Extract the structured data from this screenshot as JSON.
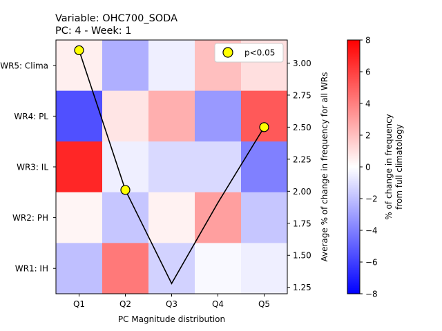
{
  "chart_data": {
    "type": "heatmap",
    "title_line1": "Variable: OHC700_SODA",
    "title_line2": "PC: 4 - Week: 1",
    "xlabel": "PC Magnitude distribution",
    "ylabel_right": "Average % of change in frequency for all WRs",
    "colorbar_label_line1": "% of change in frequency",
    "colorbar_label_line2": "from full climatology",
    "x_categories": [
      "Q1",
      "Q2",
      "Q3",
      "Q4",
      "Q5"
    ],
    "y_categories": [
      "WR5: Clima",
      "WR4: PL",
      "WR3: IL",
      "WR2: PH",
      "WR1: IH"
    ],
    "heatmap_values": [
      [
        0.5,
        -2.5,
        -0.5,
        2.0,
        1.0
      ],
      [
        -5.5,
        0.8,
        2.5,
        -3.2,
        5.2
      ],
      [
        6.8,
        -0.5,
        -1.2,
        -1.2,
        -4.0
      ],
      [
        0.3,
        -1.8,
        0.4,
        3.0,
        -1.8
      ],
      [
        -2.0,
        4.2,
        -1.4,
        -0.2,
        -0.5
      ]
    ],
    "colorbar": {
      "colormap": "bwr",
      "min": -8,
      "max": 8,
      "ticks": [
        -8,
        -6,
        -4,
        -2,
        0,
        2,
        4,
        6,
        8
      ]
    },
    "line_series": {
      "values": [
        3.1,
        2.01,
        1.28,
        1.91,
        2.5
      ],
      "significant": [
        true,
        true,
        false,
        false,
        true
      ],
      "color": "#000000",
      "marker_color": "#ffff00"
    },
    "right_axis": {
      "ylim": [
        1.2,
        3.18
      ],
      "ticks": [
        1.25,
        1.5,
        1.75,
        2.0,
        2.25,
        2.5,
        2.75,
        3.0
      ],
      "tick_labels": [
        "1.25",
        "1.50",
        "1.75",
        "2.00",
        "2.25",
        "2.50",
        "2.75",
        "3.00"
      ]
    },
    "legend": {
      "label": "p<0.05",
      "position": "upper-right"
    }
  }
}
